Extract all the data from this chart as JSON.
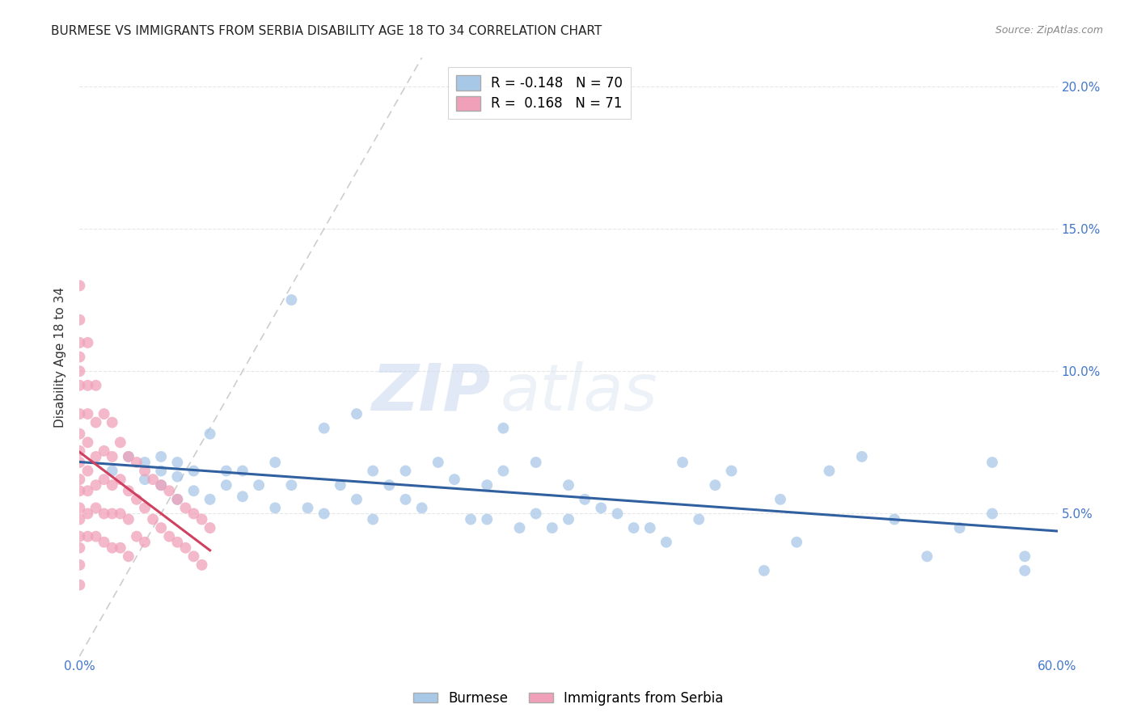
{
  "title": "BURMESE VS IMMIGRANTS FROM SERBIA DISABILITY AGE 18 TO 34 CORRELATION CHART",
  "source": "Source: ZipAtlas.com",
  "ylabel": "Disability Age 18 to 34",
  "xlim": [
    0,
    0.6
  ],
  "ylim": [
    0,
    0.21
  ],
  "burmese_R": -0.148,
  "burmese_N": 70,
  "serbia_R": 0.168,
  "serbia_N": 71,
  "burmese_color": "#a8c8e8",
  "serbia_color": "#f0a0b8",
  "burmese_line_color": "#3060a0",
  "serbia_line_color": "#d04060",
  "diagonal_color": "#cccccc",
  "watermark_zip": "ZIP",
  "watermark_atlas": "atlas",
  "burmese_x": [
    0.02,
    0.03,
    0.04,
    0.04,
    0.05,
    0.05,
    0.05,
    0.06,
    0.06,
    0.06,
    0.07,
    0.07,
    0.08,
    0.08,
    0.09,
    0.09,
    0.1,
    0.1,
    0.11,
    0.12,
    0.12,
    0.13,
    0.13,
    0.14,
    0.15,
    0.15,
    0.16,
    0.17,
    0.17,
    0.18,
    0.18,
    0.19,
    0.2,
    0.2,
    0.21,
    0.22,
    0.23,
    0.24,
    0.25,
    0.25,
    0.26,
    0.26,
    0.27,
    0.28,
    0.28,
    0.29,
    0.3,
    0.3,
    0.31,
    0.32,
    0.33,
    0.34,
    0.35,
    0.36,
    0.37,
    0.38,
    0.39,
    0.4,
    0.42,
    0.43,
    0.44,
    0.46,
    0.48,
    0.5,
    0.52,
    0.54,
    0.56,
    0.58,
    0.56,
    0.58
  ],
  "burmese_y": [
    0.065,
    0.07,
    0.062,
    0.068,
    0.06,
    0.065,
    0.07,
    0.055,
    0.063,
    0.068,
    0.058,
    0.065,
    0.055,
    0.078,
    0.06,
    0.065,
    0.056,
    0.065,
    0.06,
    0.052,
    0.068,
    0.06,
    0.125,
    0.052,
    0.05,
    0.08,
    0.06,
    0.055,
    0.085,
    0.048,
    0.065,
    0.06,
    0.055,
    0.065,
    0.052,
    0.068,
    0.062,
    0.048,
    0.048,
    0.06,
    0.065,
    0.08,
    0.045,
    0.05,
    0.068,
    0.045,
    0.048,
    0.06,
    0.055,
    0.052,
    0.05,
    0.045,
    0.045,
    0.04,
    0.068,
    0.048,
    0.06,
    0.065,
    0.03,
    0.055,
    0.04,
    0.065,
    0.07,
    0.048,
    0.035,
    0.045,
    0.05,
    0.035,
    0.068,
    0.03
  ],
  "serbia_x": [
    0.0,
    0.0,
    0.0,
    0.0,
    0.0,
    0.0,
    0.0,
    0.0,
    0.0,
    0.0,
    0.0,
    0.0,
    0.0,
    0.0,
    0.0,
    0.0,
    0.0,
    0.0,
    0.005,
    0.005,
    0.005,
    0.005,
    0.005,
    0.005,
    0.005,
    0.005,
    0.01,
    0.01,
    0.01,
    0.01,
    0.01,
    0.01,
    0.015,
    0.015,
    0.015,
    0.015,
    0.015,
    0.02,
    0.02,
    0.02,
    0.02,
    0.02,
    0.025,
    0.025,
    0.025,
    0.025,
    0.03,
    0.03,
    0.03,
    0.03,
    0.035,
    0.035,
    0.035,
    0.04,
    0.04,
    0.04,
    0.045,
    0.045,
    0.05,
    0.05,
    0.055,
    0.055,
    0.06,
    0.06,
    0.065,
    0.065,
    0.07,
    0.07,
    0.075,
    0.075,
    0.08
  ],
  "serbia_y": [
    0.13,
    0.118,
    0.11,
    0.105,
    0.1,
    0.095,
    0.085,
    0.078,
    0.072,
    0.068,
    0.062,
    0.058,
    0.052,
    0.048,
    0.042,
    0.038,
    0.032,
    0.025,
    0.11,
    0.095,
    0.085,
    0.075,
    0.065,
    0.058,
    0.05,
    0.042,
    0.095,
    0.082,
    0.07,
    0.06,
    0.052,
    0.042,
    0.085,
    0.072,
    0.062,
    0.05,
    0.04,
    0.082,
    0.07,
    0.06,
    0.05,
    0.038,
    0.075,
    0.062,
    0.05,
    0.038,
    0.07,
    0.058,
    0.048,
    0.035,
    0.068,
    0.055,
    0.042,
    0.065,
    0.052,
    0.04,
    0.062,
    0.048,
    0.06,
    0.045,
    0.058,
    0.042,
    0.055,
    0.04,
    0.052,
    0.038,
    0.05,
    0.035,
    0.048,
    0.032,
    0.045
  ]
}
